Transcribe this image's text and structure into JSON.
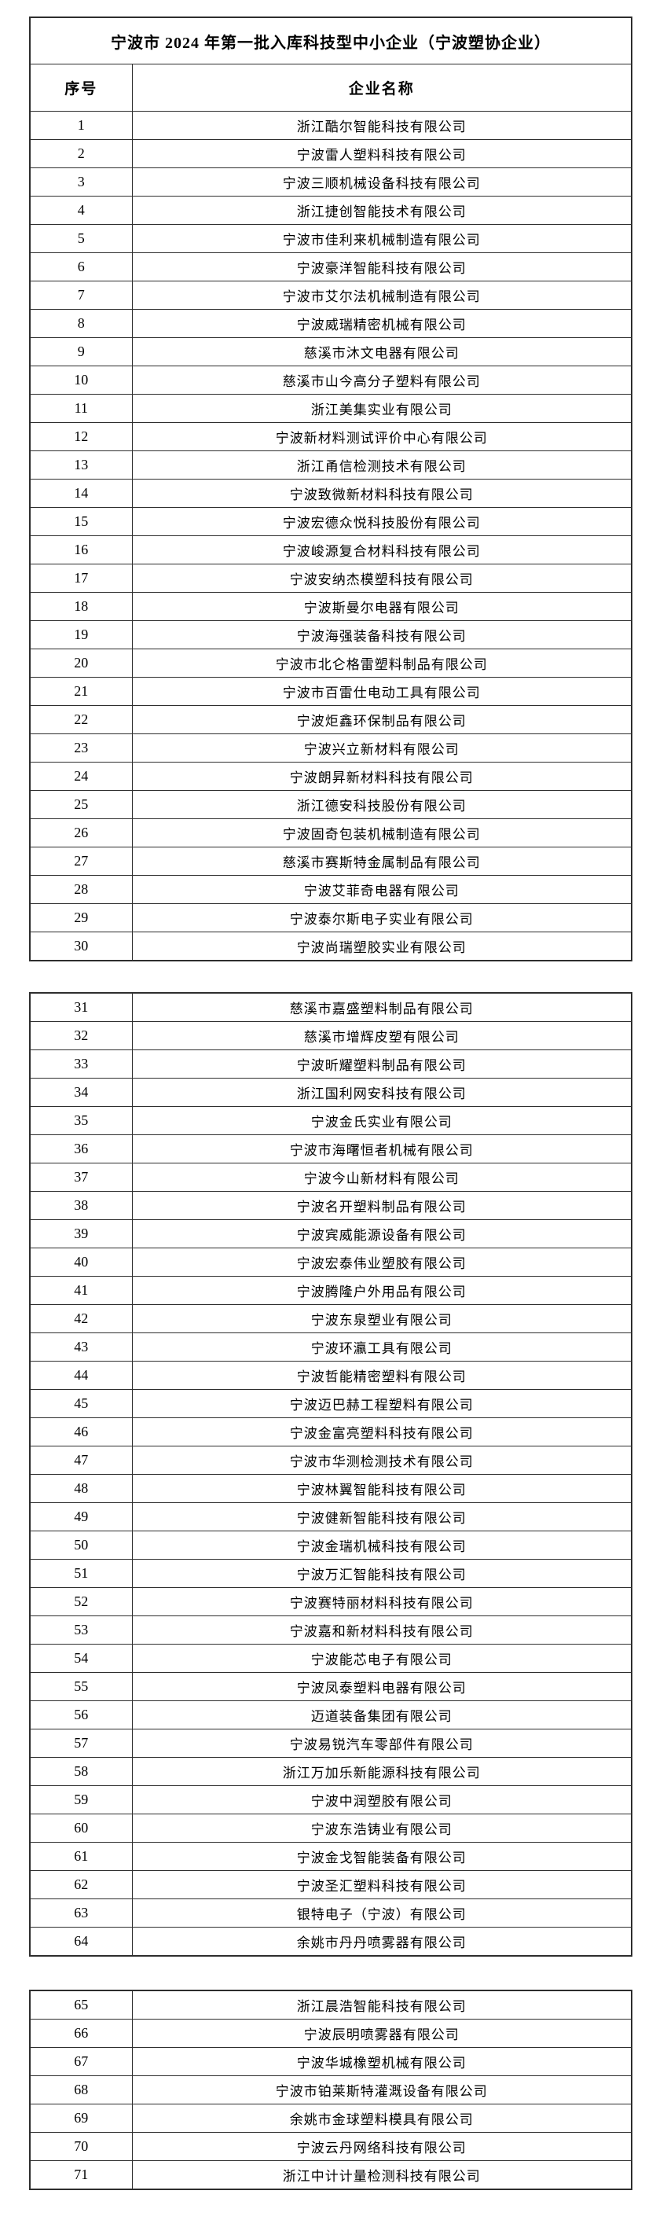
{
  "title": "宁波市 2024 年第一批入库科技型中小企业（宁波塑协企业）",
  "columns": [
    "序号",
    "企业名称"
  ],
  "page_breaks_after": [
    30,
    64
  ],
  "companies": [
    "浙江酷尔智能科技有限公司",
    "宁波雷人塑料科技有限公司",
    "宁波三顺机械设备科技有限公司",
    "浙江捷创智能技术有限公司",
    "宁波市佳利来机械制造有限公司",
    "宁波豪洋智能科技有限公司",
    "宁波市艾尔法机械制造有限公司",
    "宁波威瑞精密机械有限公司",
    "慈溪市沐文电器有限公司",
    "慈溪市山今高分子塑料有限公司",
    "浙江美集实业有限公司",
    "宁波新材料测试评价中心有限公司",
    "浙江甬信检测技术有限公司",
    "宁波致微新材料科技有限公司",
    "宁波宏德众悦科技股份有限公司",
    "宁波峻源复合材料科技有限公司",
    "宁波安纳杰模塑科技有限公司",
    "宁波斯曼尔电器有限公司",
    "宁波海强装备科技有限公司",
    "宁波市北仑格雷塑料制品有限公司",
    "宁波市百雷仕电动工具有限公司",
    "宁波炬鑫环保制品有限公司",
    "宁波兴立新材料有限公司",
    "宁波朗昇新材料科技有限公司",
    "浙江德安科技股份有限公司",
    "宁波固奇包装机械制造有限公司",
    "慈溪市赛斯特金属制品有限公司",
    "宁波艾菲奇电器有限公司",
    "宁波泰尔斯电子实业有限公司",
    "宁波尚瑞塑胶实业有限公司",
    "慈溪市嘉盛塑料制品有限公司",
    "慈溪市增辉皮塑有限公司",
    "宁波昕耀塑料制品有限公司",
    "浙江国利网安科技有限公司",
    "宁波金氏实业有限公司",
    "宁波市海曙恒者机械有限公司",
    "宁波今山新材料有限公司",
    "宁波名开塑料制品有限公司",
    "宁波宾威能源设备有限公司",
    "宁波宏泰伟业塑胶有限公司",
    "宁波腾隆户外用品有限公司",
    "宁波东泉塑业有限公司",
    "宁波环瀛工具有限公司",
    "宁波哲能精密塑料有限公司",
    "宁波迈巴赫工程塑料有限公司",
    "宁波金富亮塑料科技有限公司",
    "宁波市华测检测技术有限公司",
    "宁波林翼智能科技有限公司",
    "宁波健新智能科技有限公司",
    "宁波金瑞机械科技有限公司",
    "宁波万汇智能科技有限公司",
    "宁波赛特丽材料科技有限公司",
    "宁波嘉和新材料科技有限公司",
    "宁波能芯电子有限公司",
    "宁波凤泰塑料电器有限公司",
    "迈道装备集团有限公司",
    "宁波易锐汽车零部件有限公司",
    "浙江万加乐新能源科技有限公司",
    "宁波中润塑胶有限公司",
    "宁波东浩铸业有限公司",
    "宁波金戈智能装备有限公司",
    "宁波圣汇塑料科技有限公司",
    "银特电子（宁波）有限公司",
    "余姚市丹丹喷雾器有限公司",
    "浙江晨浩智能科技有限公司",
    "宁波辰明喷雾器有限公司",
    "宁波华城橡塑机械有限公司",
    "宁波市铂莱斯特灌溉设备有限公司",
    "余姚市金球塑料模具有限公司",
    "宁波云丹网络科技有限公司",
    "浙江中计计量检测科技有限公司"
  ]
}
